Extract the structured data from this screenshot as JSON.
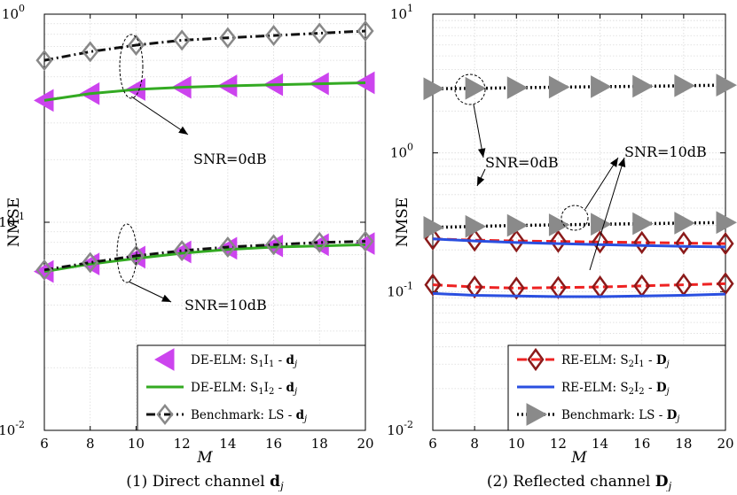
{
  "chart_data": [
    {
      "type": "line",
      "title": "",
      "caption": "(1) Direct channel d_j",
      "caption_parts": [
        "(1) Direct channel ",
        "d",
        "j"
      ],
      "xlabel": "M",
      "ylabel": "NMSE",
      "xlim": [
        6,
        20
      ],
      "ylim": [
        0.01,
        1
      ],
      "yscale": "log",
      "grid": true,
      "x": [
        6,
        8,
        10,
        12,
        14,
        16,
        18,
        20
      ],
      "xticks": [
        "6",
        "8",
        "10",
        "12",
        "14",
        "16",
        "18",
        "20"
      ],
      "yticks": [
        {
          "value": 1,
          "mant": "10",
          "exp": "0"
        },
        {
          "value": 0.1,
          "mant": "10",
          "exp": "-1"
        },
        {
          "value": 0.01,
          "mant": "10",
          "exp": "-2"
        }
      ],
      "legend_position": "bottom-right",
      "series": [
        {
          "name": "DE-ELM: S1I1 - d_j",
          "style": "tri-left",
          "color": "#cc44ee",
          "legend": {
            "pre": "DE-ELM: S",
            "s1": "1",
            "mid": "I",
            "s2": "1",
            "sep": " - ",
            "vec": "d",
            "vsub": "j"
          },
          "groups": [
            {
              "snr": "0dB",
              "values": [
                0.385,
                0.415,
                0.435,
                0.445,
                0.452,
                0.458,
                0.463,
                0.468
              ]
            },
            {
              "snr": "10dB",
              "values": [
                0.058,
                0.063,
                0.068,
                0.072,
                0.075,
                0.077,
                0.078,
                0.079
              ]
            }
          ]
        },
        {
          "name": "DE-ELM: S1I2 - d_j",
          "style": "solid-green",
          "color": "#33aa22",
          "legend": {
            "pre": "DE-ELM: S",
            "s1": "1",
            "mid": "I",
            "s2": "2",
            "sep": " - ",
            "vec": "d",
            "vsub": "j"
          },
          "groups": [
            {
              "snr": "0dB",
              "values": [
                0.385,
                0.415,
                0.435,
                0.445,
                0.452,
                0.458,
                0.463,
                0.468
              ]
            },
            {
              "snr": "10dB",
              "values": [
                0.058,
                0.063,
                0.067,
                0.071,
                0.074,
                0.076,
                0.077,
                0.078
              ]
            }
          ]
        },
        {
          "name": "Benchmark: LS - d_j",
          "style": "dashdot-diamond",
          "color": "#111111",
          "legend": {
            "pre": "Benchmark: ",
            "s1": "",
            "mid": "LS",
            "s2": "",
            "sep": " - ",
            "vec": "d",
            "vsub": "j"
          },
          "groups": [
            {
              "snr": "0dB",
              "values": [
                0.6,
                0.66,
                0.71,
                0.75,
                0.77,
                0.79,
                0.81,
                0.83
              ]
            },
            {
              "snr": "10dB",
              "values": [
                0.059,
                0.064,
                0.069,
                0.073,
                0.076,
                0.078,
                0.08,
                0.081
              ]
            }
          ]
        }
      ],
      "annotations": [
        {
          "text": "SNR=0dB",
          "at_x": 9.2,
          "at_y": 0.43
        },
        {
          "text": "SNR=10dB",
          "at_x": 8.9,
          "at_y": 0.068
        }
      ]
    },
    {
      "type": "line",
      "title": "",
      "caption": "(2) Reflected channel D_j",
      "caption_parts": [
        "(2) Reflected channel ",
        "D",
        "j"
      ],
      "xlabel": "M",
      "ylabel": "NMSE",
      "xlim": [
        6,
        20
      ],
      "ylim": [
        0.01,
        10
      ],
      "yscale": "log",
      "grid": true,
      "x": [
        6,
        8,
        10,
        12,
        14,
        16,
        18,
        20
      ],
      "xticks": [
        "6",
        "8",
        "10",
        "12",
        "14",
        "16",
        "18",
        "20"
      ],
      "yticks": [
        {
          "value": 10,
          "mant": "10",
          "exp": "1"
        },
        {
          "value": 1,
          "mant": "10",
          "exp": "0"
        },
        {
          "value": 0.1,
          "mant": "10",
          "exp": "-1"
        },
        {
          "value": 0.01,
          "mant": "10",
          "exp": "-2"
        }
      ],
      "legend_position": "bottom-right",
      "series": [
        {
          "name": "RE-ELM: S2I1 - D_j",
          "style": "dashed-diamond",
          "color": "#ee2222",
          "legend": {
            "pre": "RE-ELM: S",
            "s1": "2",
            "mid": "I",
            "s2": "1",
            "sep": " - ",
            "vec": "D",
            "vsub": "j"
          },
          "groups": [
            {
              "snr": "0dB",
              "values": [
                0.24,
                0.235,
                0.232,
                0.23,
                0.228,
                0.226,
                0.224,
                0.222
              ]
            },
            {
              "snr": "10dB",
              "values": [
                0.112,
                0.108,
                0.106,
                0.107,
                0.108,
                0.11,
                0.112,
                0.114
              ]
            }
          ]
        },
        {
          "name": "RE-ELM: S2I2 - D_j",
          "style": "solid-blue",
          "color": "#2a4fe0",
          "legend": {
            "pre": "RE-ELM: S",
            "s1": "2",
            "mid": "I",
            "s2": "2",
            "sep": " - ",
            "vec": "D",
            "vsub": "j"
          },
          "groups": [
            {
              "snr": "0dB",
              "values": [
                0.24,
                0.232,
                0.226,
                0.222,
                0.218,
                0.215,
                0.212,
                0.21
              ]
            },
            {
              "snr": "10dB",
              "values": [
                0.097,
                0.094,
                0.093,
                0.092,
                0.092,
                0.093,
                0.094,
                0.096
              ]
            }
          ]
        },
        {
          "name": "Benchmark: LS - D_j",
          "style": "dotted-tri-right",
          "color": "#111111",
          "legend": {
            "pre": "Benchmark: ",
            "s1": "",
            "mid": "LS",
            "s2": "",
            "sep": " - ",
            "vec": "D",
            "vsub": "j"
          },
          "groups": [
            {
              "snr": "0dB",
              "values": [
                2.9,
                2.92,
                2.95,
                2.98,
                3.0,
                3.02,
                3.05,
                3.08
              ]
            },
            {
              "snr": "10dB",
              "values": [
                0.29,
                0.295,
                0.3,
                0.303,
                0.306,
                0.309,
                0.312,
                0.315
              ]
            }
          ]
        }
      ],
      "annotations": [
        {
          "text": "SNR=0dB",
          "at_x": 7.3,
          "at_y": 2.9
        },
        {
          "text": "SNR=10dB",
          "at_x": 12.9,
          "at_y": 0.3
        }
      ]
    }
  ]
}
